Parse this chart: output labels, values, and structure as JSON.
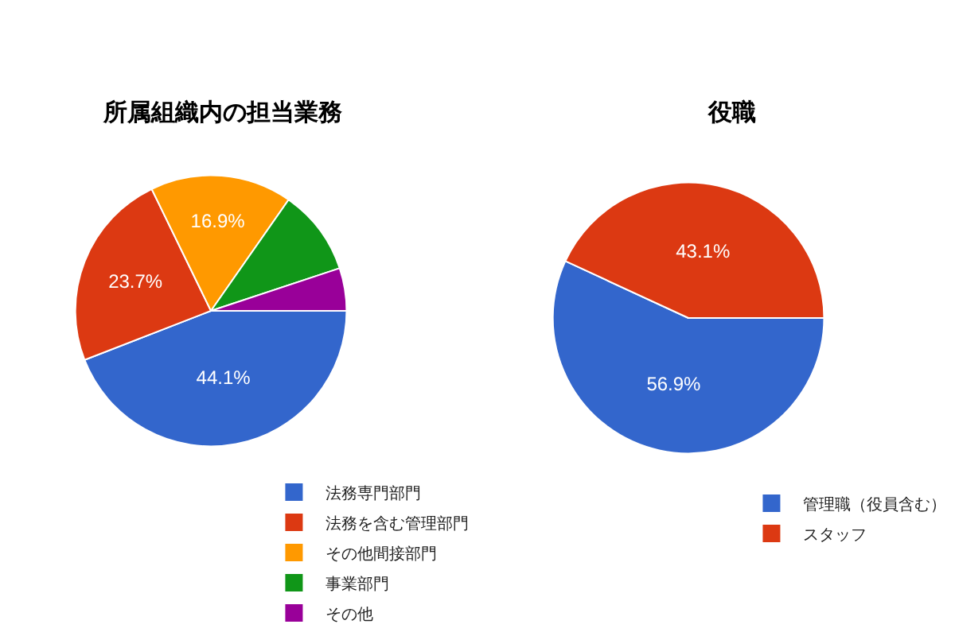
{
  "chart_data": [
    {
      "type": "pie",
      "title": "所属組織内の担当業務",
      "categories": [
        "法務専門部門",
        "法務を含む管理部門",
        "その他間接部門",
        "事業部門",
        "その他"
      ],
      "values": [
        44.1,
        23.7,
        16.9,
        10.2,
        5.1
      ],
      "colors": [
        "#3366cc",
        "#dc3912",
        "#ff9900",
        "#109618",
        "#990099"
      ],
      "value_labels": [
        "44.1%",
        "23.7%",
        "16.9%",
        null,
        null
      ],
      "legend": "bottom"
    },
    {
      "type": "pie",
      "title": "役職",
      "categories": [
        "管理職（役員含む）",
        "スタッフ"
      ],
      "values": [
        56.9,
        43.1
      ],
      "colors": [
        "#3366cc",
        "#dc3912"
      ],
      "value_labels": [
        "56.9%",
        "43.1%"
      ],
      "legend": "bottom"
    }
  ]
}
